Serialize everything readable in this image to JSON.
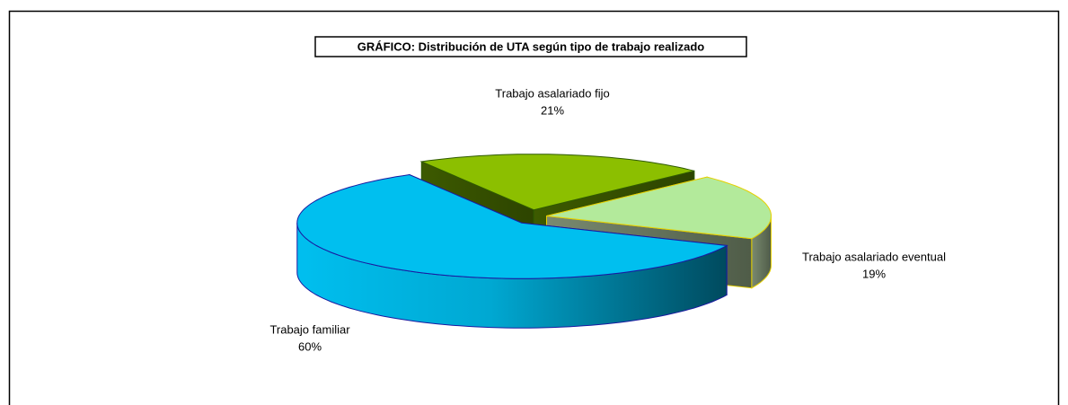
{
  "chart_data": {
    "type": "pie",
    "title": "GRÁFICO: Distribución de UTA según tipo de trabajo realizado",
    "categories": [
      "Trabajo asalariado fijo",
      "Trabajo asalariado eventual",
      "Trabajo familiar"
    ],
    "values": [
      21,
      19,
      60
    ],
    "value_labels": [
      "21%",
      "19%",
      "60%"
    ],
    "colors": [
      "#8cbf00",
      "#b3ea9b",
      "#00bfef"
    ],
    "edge_colors": [
      "#2f5a00",
      "#e6d000",
      "#1a1aa0"
    ],
    "style": "3d"
  }
}
